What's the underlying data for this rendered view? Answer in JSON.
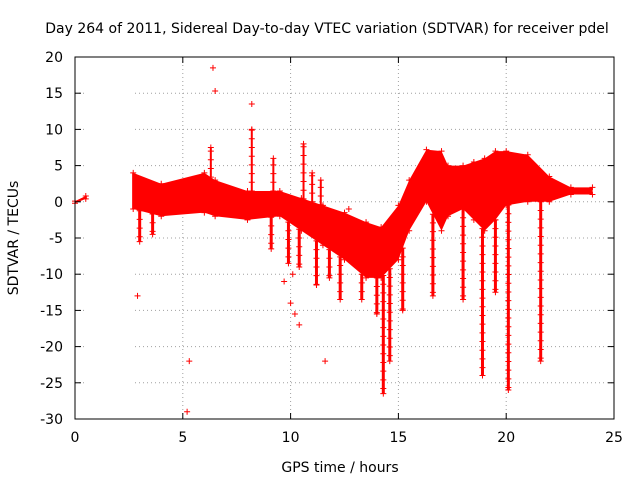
{
  "chart_data": {
    "type": "scatter",
    "title": "Day 264 of 2011, Sidereal Day-to-day VTEC variation (SDTVAR) for receiver pdel",
    "xlabel": "GPS time / hours",
    "ylabel": "SDTVAR / TECUs",
    "xlim": [
      0,
      25
    ],
    "ylim": [
      -30,
      20
    ],
    "xticks": [
      0,
      5,
      10,
      15,
      20,
      25
    ],
    "yticks": [
      -30,
      -25,
      -20,
      -15,
      -10,
      -5,
      0,
      5,
      10,
      15,
      20
    ],
    "grid": true,
    "color": "#ff0000",
    "marker": "+",
    "series": [
      {
        "name": "band_top",
        "x": [
          0,
          0.5,
          2.7,
          4,
          6,
          6.5,
          8,
          9.5,
          10.5,
          11.5,
          12.5,
          13.5,
          14.2,
          15,
          15.5,
          16.3,
          17,
          17.3,
          18,
          18.5,
          19,
          19.5,
          20,
          21,
          22,
          23,
          24
        ],
        "y": [
          0.1,
          0.8,
          4,
          2.5,
          4,
          3,
          1.5,
          1.5,
          0.5,
          -0.5,
          -1.5,
          -2.8,
          -3.5,
          -0.5,
          3,
          7.2,
          7,
          5,
          5,
          5.5,
          6,
          7,
          7,
          6.5,
          3.5,
          2,
          2
        ]
      },
      {
        "name": "band_bottom",
        "x": [
          0,
          0.5,
          2.7,
          4,
          6,
          6.5,
          8,
          9.5,
          10.5,
          11.5,
          12.5,
          13.5,
          14.2,
          15,
          15.5,
          16.3,
          17,
          17.3,
          18,
          18.5,
          19,
          19.5,
          20,
          21,
          22,
          23,
          24
        ],
        "y": [
          -0.2,
          0.4,
          -1,
          -2,
          -1.5,
          -2,
          -2.5,
          -2,
          -4,
          -6,
          -8,
          -10.5,
          -10.5,
          -8,
          -4,
          0,
          -4,
          -2,
          -1,
          -2.5,
          -4,
          -2.5,
          -0.5,
          0,
          0,
          1,
          1
        ]
      },
      {
        "name": "spikes_down",
        "x": [
          3.0,
          3.6,
          9.1,
          9.9,
          10.4,
          11.2,
          11.8,
          12.3,
          13.3,
          14.0,
          14.3,
          14.6,
          15.2,
          16.6,
          18.0,
          18.9,
          19.5,
          20.1,
          21.6
        ],
        "y": [
          -5.5,
          -4.5,
          -6.5,
          -8.5,
          -9,
          -11.5,
          -10.5,
          -13.5,
          -13.5,
          -15.5,
          -26.5,
          -22,
          -15,
          -13,
          -13.5,
          -24,
          -12.5,
          -26,
          -22
        ]
      },
      {
        "name": "spikes_up",
        "x": [
          6.3,
          8.2,
          9.2,
          10.6,
          11.0,
          11.4
        ],
        "y": [
          7.5,
          10,
          6,
          8,
          4,
          3
        ]
      },
      {
        "name": "outliers",
        "x": [
          2.9,
          5.2,
          5.3,
          6.4,
          6.5,
          8.2,
          9.7,
          10.0,
          10.1,
          10.2,
          10.4,
          11.6,
          12.7
        ],
        "y": [
          -13,
          -29,
          -22,
          18.5,
          15.3,
          13.5,
          -11,
          -14,
          -10,
          -15.5,
          -17,
          -22,
          -1
        ]
      }
    ]
  }
}
